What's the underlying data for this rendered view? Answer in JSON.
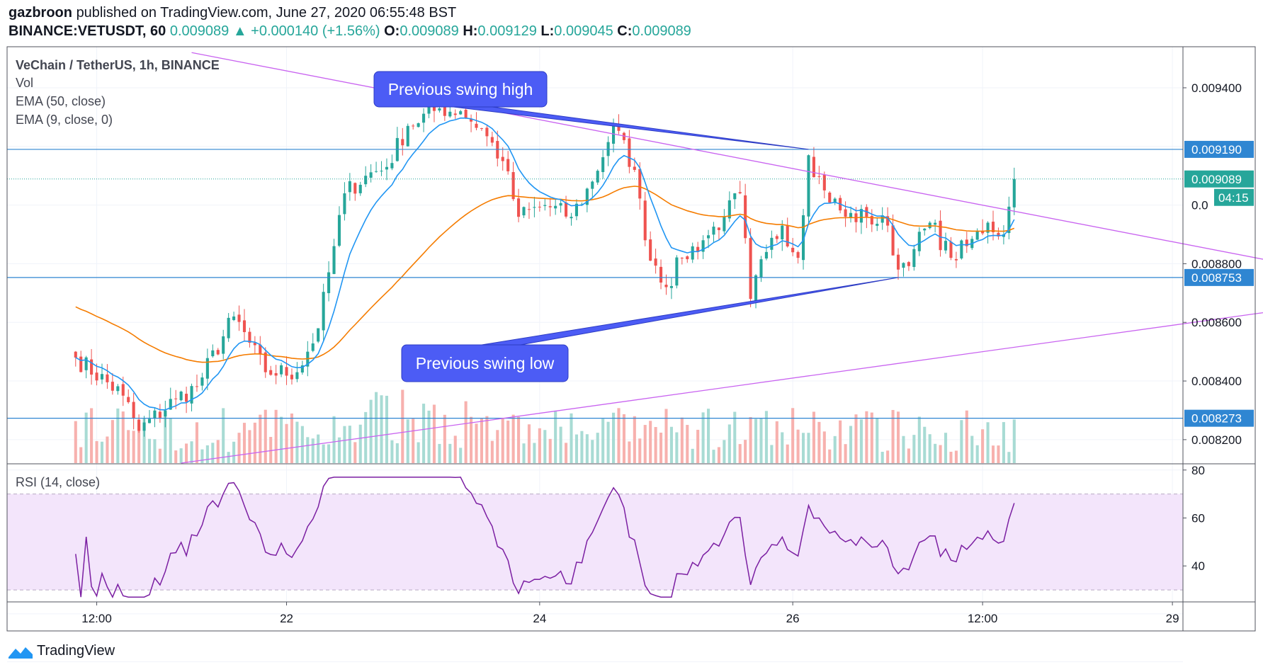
{
  "header": {
    "author": "gazbroon",
    "published_text": "published on TradingView.com, June 27, 2020 06:55:48 BST",
    "symbol": "BINANCE:VETUSDT, 60",
    "last": "0.009089",
    "arrow": "▲",
    "change": "+0.000140 (+1.56%)",
    "o_label": "O:",
    "o_value": "0.009089",
    "h_label": "H:",
    "h_value": "0.009129",
    "l_label": "L:",
    "l_value": "0.009045",
    "c_label": "C:",
    "c_value": "0.009089"
  },
  "legend": {
    "title": "VeChain / TetherUS, 1h, BINANCE",
    "vol": "Vol",
    "ema50": "EMA (50, close)",
    "ema9": "EMA (9, close, 0)",
    "rsi": "RSI (14, close)"
  },
  "annotations": {
    "swing_high": "Previous swing high",
    "swing_low": "Previous swing low"
  },
  "footer": {
    "brand": "TradingView",
    "logo_icon": "tradingview-logo-icon"
  },
  "colors": {
    "up": "#26a69a",
    "down": "#ef5350",
    "ema50": "#f57c00",
    "ema9": "#2196f3",
    "trendline": "#c964f0",
    "hline": "#2f86d2",
    "callout": "#4c5cf5",
    "rsi": "#7b1fa2",
    "rsi_band": "#f3e5fb"
  },
  "chart_data": {
    "type": "candlestick",
    "price_axis": {
      "ylim": [
        0.00812,
        0.00954
      ],
      "ticks": [
        "0.009400",
        "0.008800",
        "0.008600",
        "0.008400",
        "0.008200"
      ],
      "partial_tick": "0.0",
      "price_labels": [
        {
          "value": 0.00919,
          "text": "0.009190",
          "style": "hline"
        },
        {
          "value": 0.009089,
          "text": "0.009089",
          "style": "last"
        },
        {
          "value": 0.008753,
          "text": "0.008753",
          "style": "hline"
        },
        {
          "value": 0.008273,
          "text": "0.008273",
          "style": "hline"
        }
      ],
      "countdown": "04:15"
    },
    "time_axis": {
      "bar_range": [
        -13,
        210
      ],
      "labels": [
        {
          "bar": 4,
          "text": "12:00"
        },
        {
          "bar": 40,
          "text": "22"
        },
        {
          "bar": 88,
          "text": "24"
        },
        {
          "bar": 136,
          "text": "26"
        },
        {
          "bar": 172,
          "text": "12:00"
        },
        {
          "bar": 208,
          "text": "29"
        }
      ]
    },
    "horizontal_lines": [
      0.00919,
      0.008753,
      0.008273
    ],
    "trendlines": [
      {
        "from": {
          "bar": 22,
          "price": 0.00952
        },
        "to": {
          "bar": 257,
          "price": 0.008705
        }
      },
      {
        "from": {
          "bar": 20,
          "price": 0.00812
        },
        "to": {
          "bar": 262,
          "price": 0.008725
        }
      }
    ],
    "callouts": [
      {
        "key": "swing_high",
        "tip": {
          "bar": 139,
          "price": 0.00919
        }
      },
      {
        "key": "swing_low",
        "tip": {
          "bar": 156,
          "price": 0.008753
        }
      }
    ],
    "rsi_axis": {
      "ylim": [
        25,
        82
      ],
      "ticks": [
        80,
        60,
        40
      ],
      "band": [
        30,
        70
      ]
    },
    "swing_points": [
      {
        "bar": 0,
        "price": 0.00848
      },
      {
        "bar": 9,
        "price": 0.00835
      },
      {
        "bar": 12,
        "price": 0.00823
      },
      {
        "bar": 19,
        "price": 0.00834
      },
      {
        "bar": 23,
        "price": 0.00838
      },
      {
        "bar": 30,
        "price": 0.00862
      },
      {
        "bar": 36,
        "price": 0.00843
      },
      {
        "bar": 42,
        "price": 0.00843
      },
      {
        "bar": 46,
        "price": 0.00858
      },
      {
        "bar": 49,
        "price": 0.00886
      },
      {
        "bar": 51,
        "price": 0.00904
      },
      {
        "bar": 55,
        "price": 0.0091
      },
      {
        "bar": 59,
        "price": 0.00913
      },
      {
        "bar": 63,
        "price": 0.00927
      },
      {
        "bar": 69,
        "price": 0.00933
      },
      {
        "bar": 73,
        "price": 0.00932
      },
      {
        "bar": 77,
        "price": 0.00926
      },
      {
        "bar": 81,
        "price": 0.00915
      },
      {
        "bar": 84,
        "price": 0.00896
      },
      {
        "bar": 89,
        "price": 0.009
      },
      {
        "bar": 94,
        "price": 0.00896
      },
      {
        "bar": 98,
        "price": 0.00908
      },
      {
        "bar": 102,
        "price": 0.00927
      },
      {
        "bar": 106,
        "price": 0.00912
      },
      {
        "bar": 108,
        "price": 0.00888
      },
      {
        "bar": 112,
        "price": 0.00872
      },
      {
        "bar": 115,
        "price": 0.00882
      },
      {
        "bar": 119,
        "price": 0.00888
      },
      {
        "bar": 123,
        "price": 0.00896
      },
      {
        "bar": 126,
        "price": 0.00904
      },
      {
        "bar": 128,
        "price": 0.00868
      },
      {
        "bar": 131,
        "price": 0.00884
      },
      {
        "bar": 134,
        "price": 0.00893
      },
      {
        "bar": 137,
        "price": 0.00882
      },
      {
        "bar": 139,
        "price": 0.00917
      },
      {
        "bar": 142,
        "price": 0.00905
      },
      {
        "bar": 146,
        "price": 0.00896
      },
      {
        "bar": 150,
        "price": 0.00896
      },
      {
        "bar": 154,
        "price": 0.00893
      },
      {
        "bar": 156,
        "price": 0.00878
      },
      {
        "bar": 159,
        "price": 0.00885
      },
      {
        "bar": 162,
        "price": 0.00894
      },
      {
        "bar": 166,
        "price": 0.00882
      },
      {
        "bar": 169,
        "price": 0.00886
      },
      {
        "bar": 173,
        "price": 0.00894
      },
      {
        "bar": 176,
        "price": 0.0089
      },
      {
        "bar": 178,
        "price": 0.00908
      }
    ]
  }
}
